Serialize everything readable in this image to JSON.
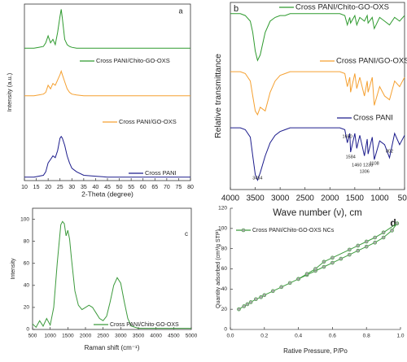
{
  "chart_data": [
    {
      "type": "line",
      "panel_label": "a",
      "xlabel": "2-Theta (degree)",
      "ylabel": "Intensity (a.u.)",
      "x": [
        10,
        12,
        14,
        16,
        18,
        19,
        20,
        21,
        22,
        23,
        24,
        25,
        25.5,
        26,
        27,
        28,
        29,
        30,
        32,
        35,
        40,
        45,
        50,
        60,
        70,
        80
      ],
      "xlim": [
        10,
        80
      ],
      "xticks": [
        10,
        15,
        20,
        25,
        30,
        35,
        40,
        45,
        50,
        55,
        60,
        65,
        70,
        75,
        80
      ],
      "ylim": [
        0,
        100
      ],
      "series": [
        {
          "name": "Cross PANI/Chito-GO-OXS",
          "color": "#2e9a2e",
          "values": [
            75,
            75,
            75,
            75.5,
            76,
            78,
            82,
            78,
            80,
            77,
            84,
            93,
            97,
            92,
            80,
            77,
            76,
            75.5,
            75,
            75,
            75,
            75,
            75,
            75,
            75,
            75
          ]
        },
        {
          "name": "Cross PANI/GO-OXS",
          "color": "#f5a030",
          "values": [
            48,
            48,
            48,
            48.5,
            49,
            50,
            54,
            52,
            55,
            54,
            57,
            60,
            62,
            60,
            56,
            52,
            50,
            49,
            48.5,
            48,
            48,
            48,
            48,
            48,
            48,
            48
          ]
        },
        {
          "name": "Cross PANI",
          "color": "#1c1c8c",
          "values": [
            2,
            2,
            2,
            2.5,
            3,
            5,
            10,
            12,
            14,
            13,
            17,
            24,
            25,
            24,
            20,
            14,
            10,
            7,
            5,
            3,
            2.5,
            2,
            2,
            2,
            2,
            2
          ]
        }
      ]
    },
    {
      "type": "line",
      "panel_label": "b",
      "xlabel": "Wave number (ν), cm",
      "ylabel": "Relative transmittance",
      "x": [
        4000,
        3800,
        3700,
        3600,
        3550,
        3500,
        3454,
        3400,
        3300,
        3200,
        3100,
        3000,
        2900,
        2800,
        2500,
        2000,
        1800,
        1700,
        1650,
        1600,
        1584,
        1500,
        1460,
        1400,
        1306,
        1250,
        1233,
        1150,
        1108,
        1000,
        900,
        802,
        700,
        600,
        500
      ],
      "xlim": [
        4000,
        500
      ],
      "xticks": [
        4000,
        3500,
        3000,
        2500,
        2000,
        1500,
        1000,
        500
      ],
      "ylim": [
        0,
        100
      ],
      "series": [
        {
          "name": "Cross PANI/Chito-GO-OXS",
          "color": "#2e9a2e",
          "values": [
            94,
            94,
            93,
            90,
            84,
            74,
            69,
            72,
            84,
            90,
            92,
            93,
            93,
            94,
            94,
            94,
            94,
            93,
            88,
            92,
            89,
            93,
            88,
            92,
            90,
            93,
            89,
            92,
            86,
            92,
            90,
            88,
            92,
            90,
            93
          ]
        },
        {
          "name": "Cross PANI/GO-OXS",
          "color": "#f5a030",
          "values": [
            63,
            63,
            62,
            58,
            50,
            42,
            40,
            44,
            42,
            52,
            58,
            61,
            62,
            63,
            63,
            63,
            63,
            62,
            55,
            60,
            52,
            62,
            54,
            60,
            50,
            58,
            52,
            60,
            45,
            55,
            50,
            48,
            58,
            55,
            60
          ]
        },
        {
          "name": "Cross PANI",
          "color": "#1c1c8c",
          "values": [
            33,
            33,
            32,
            28,
            18,
            8,
            5,
            9,
            18,
            25,
            29,
            31,
            32,
            33,
            33,
            33,
            33,
            32,
            25,
            30,
            20,
            30,
            22,
            29,
            18,
            27,
            19,
            28,
            16,
            26,
            24,
            17,
            30,
            24,
            29
          ]
        }
      ],
      "peak_labels": [
        3454,
        1650,
        1584,
        1460,
        1306,
        1233,
        1108,
        802
      ]
    },
    {
      "type": "line",
      "panel_label": "c",
      "xlabel": "Raman shift (cm⁻¹)",
      "ylabel": "Intensity",
      "x": [
        500,
        600,
        700,
        800,
        900,
        1000,
        1100,
        1200,
        1300,
        1350,
        1400,
        1450,
        1500,
        1550,
        1600,
        1700,
        1800,
        1900,
        2000,
        2100,
        2200,
        2300,
        2400,
        2500,
        2600,
        2700,
        2800,
        2900,
        3000,
        3100,
        3200,
        3300,
        3500,
        4000,
        4500,
        5000
      ],
      "xlim": [
        500,
        5000
      ],
      "xticks": [
        500,
        1000,
        1500,
        2000,
        2500,
        3000,
        3500,
        4000,
        4500,
        5000
      ],
      "ylim": [
        0,
        110
      ],
      "yticks": [
        0,
        20,
        40,
        60,
        80,
        100
      ],
      "series": [
        {
          "name": "Cross PANI/Chito-GO-OXS",
          "color": "#3c9a3c",
          "values": [
            5,
            2,
            8,
            3,
            10,
            4,
            20,
            60,
            95,
            98,
            96,
            85,
            90,
            82,
            65,
            35,
            22,
            18,
            20,
            22,
            20,
            15,
            10,
            8,
            12,
            25,
            40,
            47,
            42,
            25,
            10,
            3,
            1,
            1,
            1,
            1
          ]
        }
      ]
    },
    {
      "type": "line",
      "panel_label": "d",
      "xlabel": "Rative Pressure, P/Po",
      "ylabel": "Quantity adsorbed (cm³/g STP)",
      "xlim": [
        0,
        1
      ],
      "xticks": [
        {
          "value": 0,
          "label": "0.0"
        },
        0.2,
        0.4,
        0.6,
        0.8,
        {
          "value": 1,
          "label": "1.0"
        }
      ],
      "ylim": [
        0,
        120
      ],
      "yticks": [
        0,
        20,
        40,
        60,
        80,
        100,
        120
      ],
      "marker": "circle",
      "series": [
        {
          "name": "Cross PANI/Chito-GO-OXS NCs",
          "color": "#3c9a3c",
          "x": [
            0.05,
            0.08,
            0.1,
            0.12,
            0.15,
            0.18,
            0.2,
            0.25,
            0.3,
            0.35,
            0.4,
            0.45,
            0.5,
            0.55,
            0.6,
            0.65,
            0.7,
            0.75,
            0.8,
            0.85,
            0.9,
            0.95,
            0.98
          ],
          "values": [
            20,
            23,
            25,
            27,
            30,
            32,
            34,
            38,
            42,
            46,
            50,
            54,
            58,
            62,
            66,
            70,
            74,
            78,
            82,
            86,
            91,
            98,
            105
          ]
        },
        {
          "color": "#3c9a3c",
          "x": [
            0.98,
            0.9,
            0.85,
            0.8,
            0.75,
            0.7,
            0.6,
            0.55,
            0.5,
            0.45,
            0.4
          ],
          "values": [
            105,
            96,
            91,
            87,
            83,
            79,
            71,
            67,
            60,
            55,
            50
          ]
        }
      ]
    }
  ]
}
